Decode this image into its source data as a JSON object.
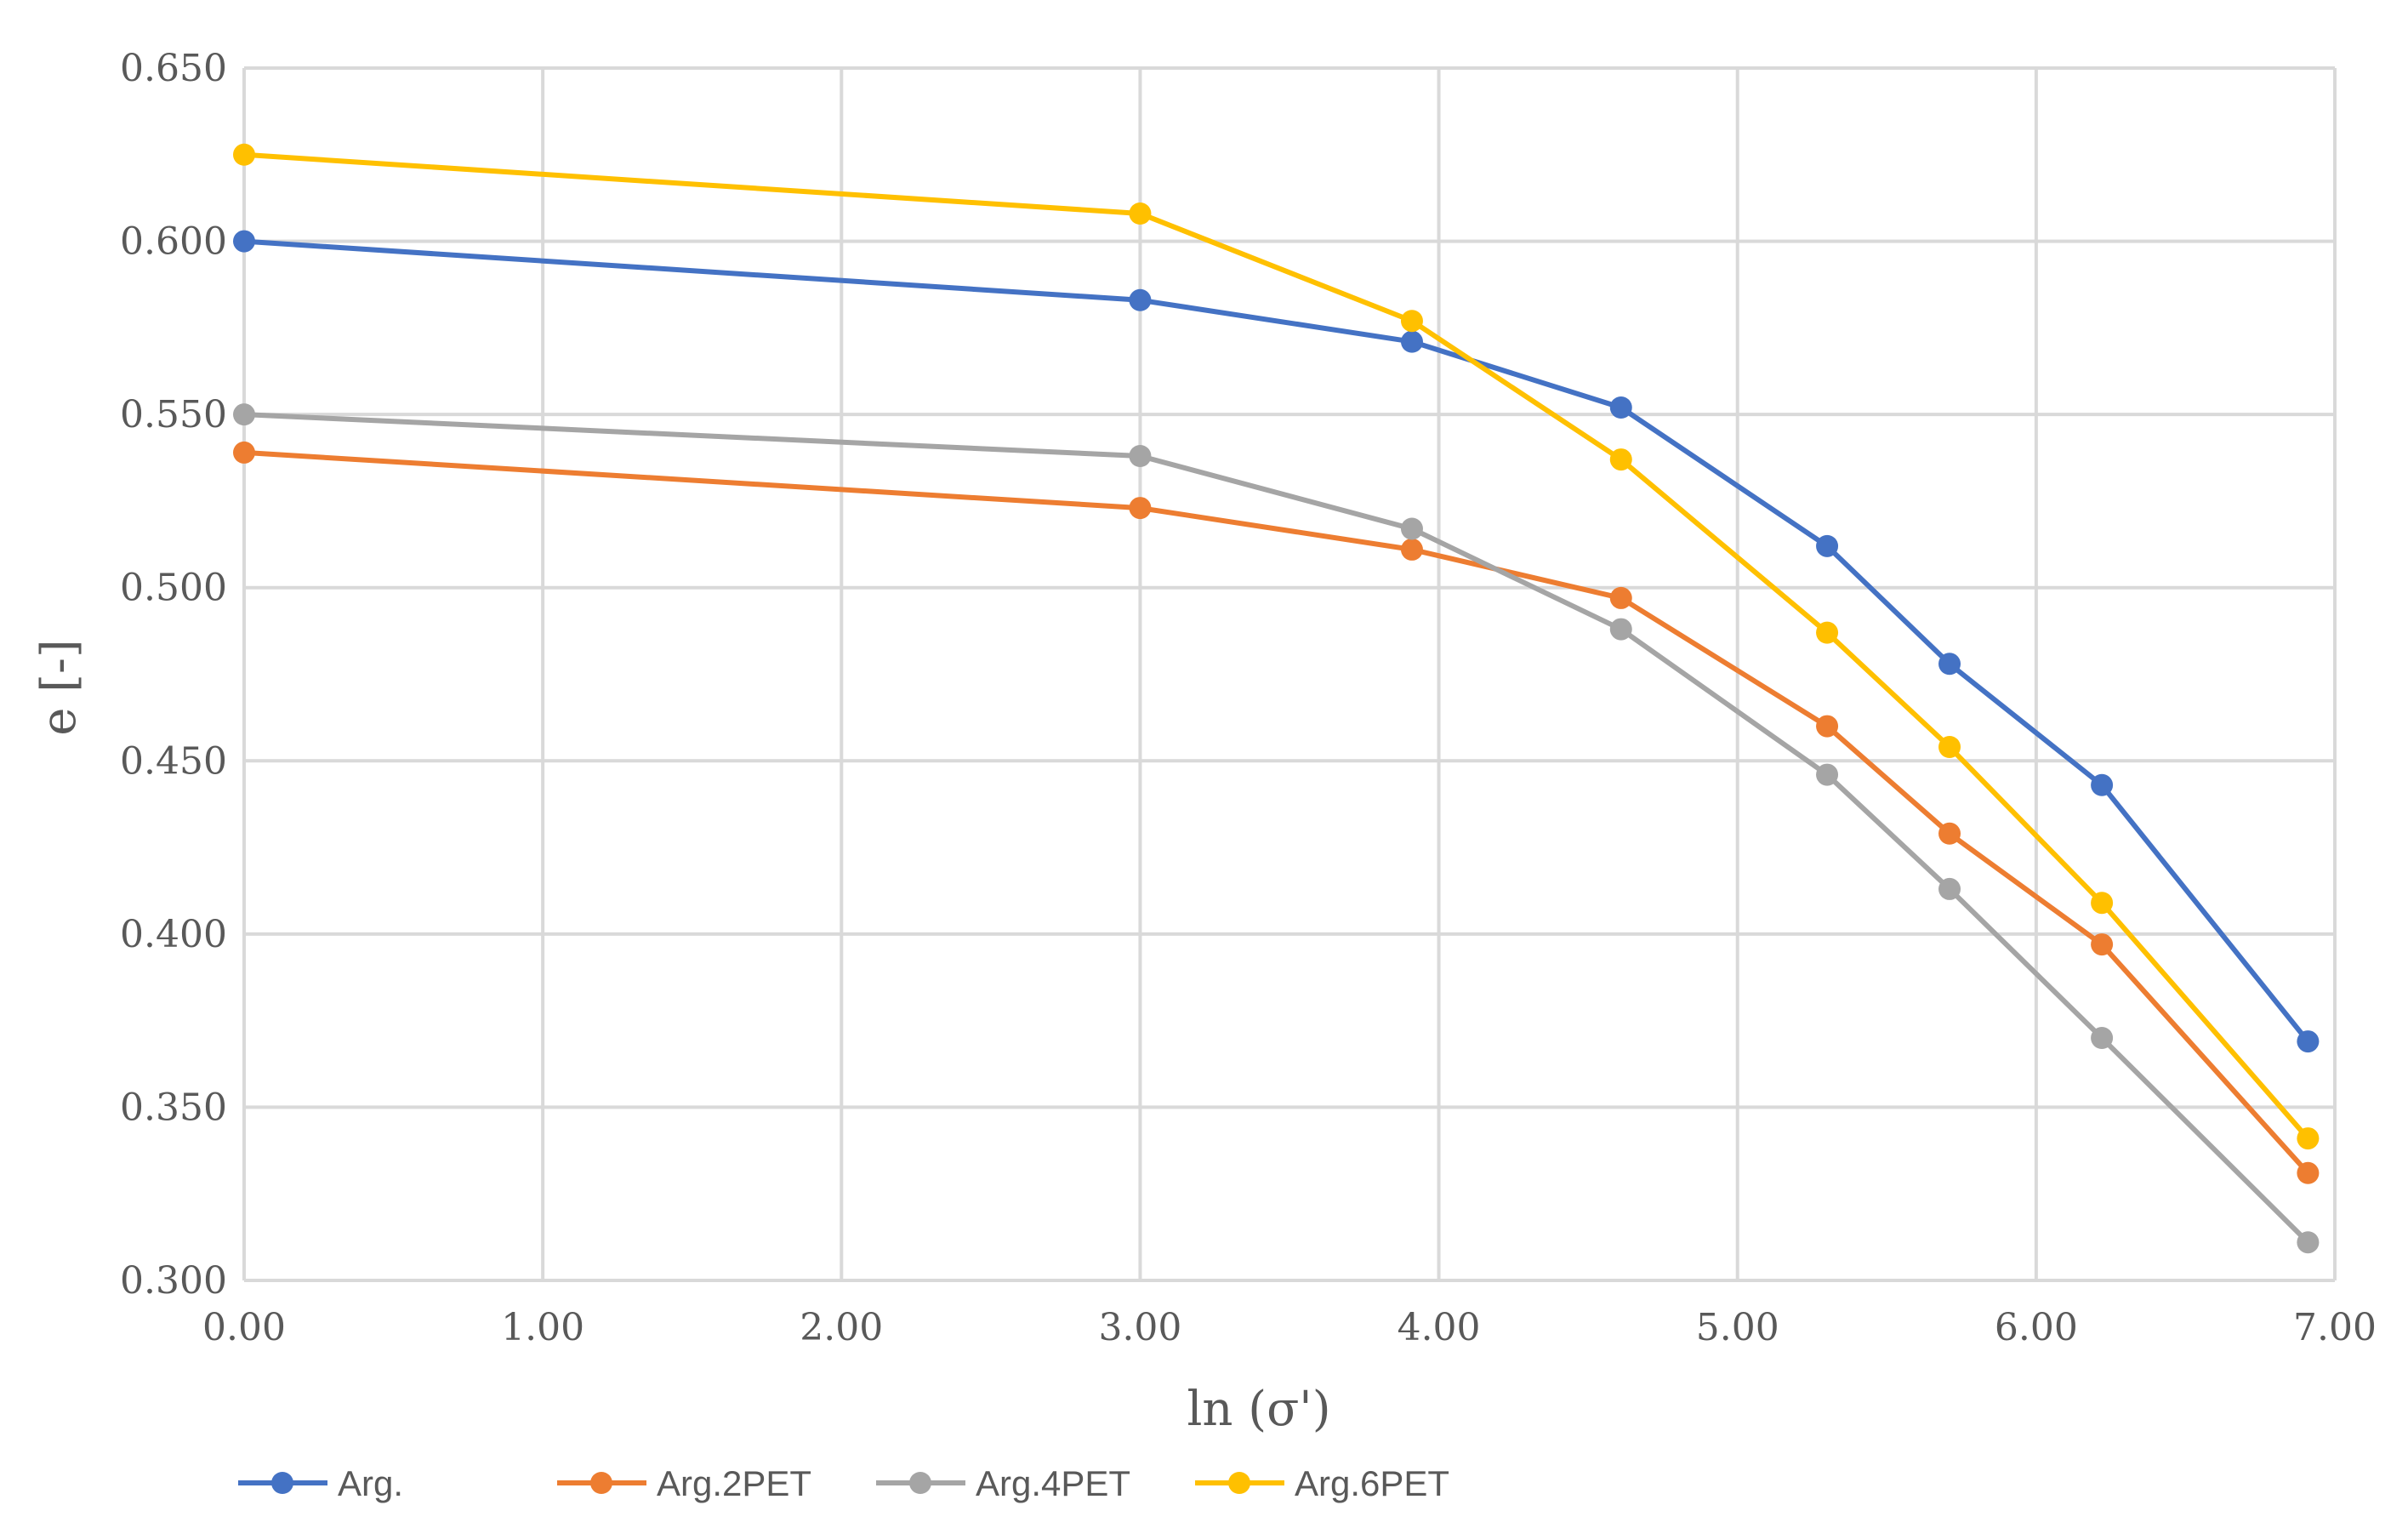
{
  "chart_data": {
    "type": "line",
    "title": "",
    "xlabel": "ln (σ')",
    "ylabel": "e [-]",
    "xlim": [
      0,
      7
    ],
    "ylim": [
      0.3,
      0.65
    ],
    "x_ticks": [
      "0.00",
      "1.00",
      "2.00",
      "3.00",
      "4.00",
      "5.00",
      "6.00",
      "7.00"
    ],
    "y_ticks": [
      "0.300",
      "0.350",
      "0.400",
      "0.450",
      "0.500",
      "0.550",
      "0.600",
      "0.650"
    ],
    "grid": true,
    "legend_position": "bottom-left",
    "x": [
      0.0,
      3.0,
      3.91,
      4.61,
      5.3,
      5.71,
      6.22,
      6.91
    ],
    "series": [
      {
        "name": "Arg.",
        "color": "#4472C4",
        "values": [
          0.6,
          0.583,
          0.571,
          0.552,
          0.512,
          0.478,
          0.443,
          0.369
        ]
      },
      {
        "name": "Arg.2PET",
        "color": "#ED7D31",
        "values": [
          0.539,
          0.523,
          0.511,
          0.497,
          0.46,
          0.429,
          0.397,
          0.331
        ]
      },
      {
        "name": "Arg.4PET",
        "color": "#A5A5A5",
        "values": [
          0.55,
          0.538,
          0.517,
          0.488,
          0.446,
          0.413,
          0.37,
          0.311
        ]
      },
      {
        "name": "Arg.6PET",
        "color": "#FFC000",
        "values": [
          0.625,
          0.608,
          0.577,
          0.537,
          0.487,
          0.454,
          0.409,
          0.341
        ]
      }
    ]
  }
}
